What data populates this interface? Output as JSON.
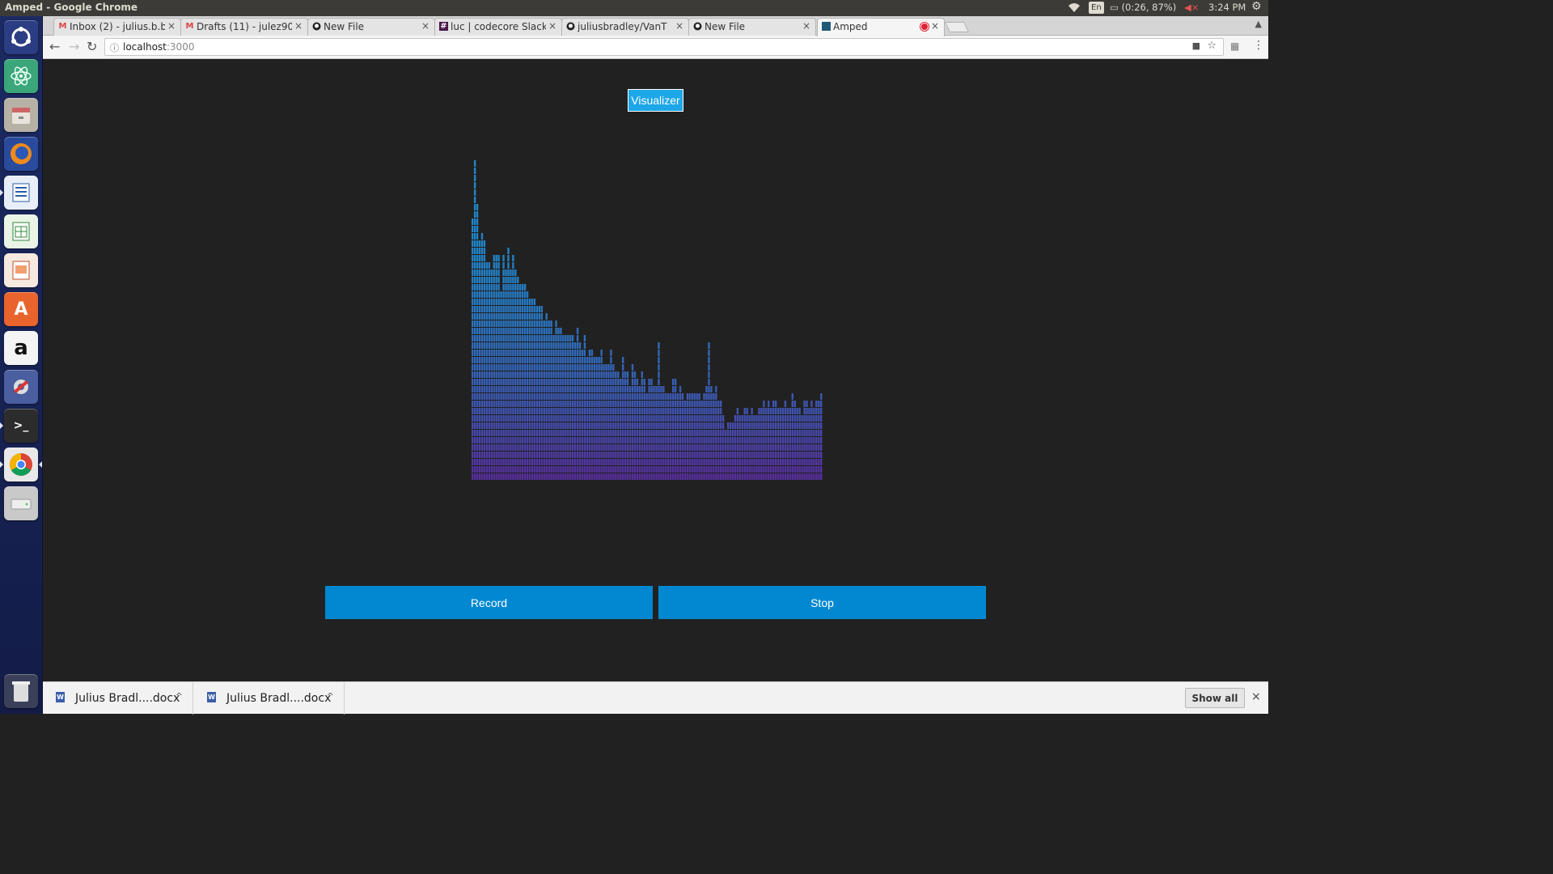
{
  "os_panel": {
    "window_title": "Amped - Google Chrome",
    "language": "En",
    "battery": "(0:26, 87%)",
    "clock": "3:24 PM"
  },
  "launcher": {
    "apps": [
      "ubuntu-dash",
      "atom",
      "files",
      "firefox",
      "writer",
      "calc",
      "impress",
      "software-center",
      "amazon",
      "system-settings",
      "terminal",
      "chrome",
      "disk",
      "trash"
    ]
  },
  "browser": {
    "tabs": [
      {
        "label": "Inbox (2) - julius.b.b",
        "icon": "gmail-icon"
      },
      {
        "label": "Drafts (11) - julez90",
        "icon": "gmail-icon"
      },
      {
        "label": "New File",
        "icon": "github-icon"
      },
      {
        "label": "luc | codecore Slack",
        "icon": "slack-icon"
      },
      {
        "label": "juliusbradley/VanT",
        "icon": "github-icon"
      },
      {
        "label": "New File",
        "icon": "github-icon"
      },
      {
        "label": "Amped",
        "icon": "app-icon",
        "active": true,
        "recording": true
      }
    ],
    "url_host": "localhost",
    "url_port": ":3000"
  },
  "app": {
    "visualizer_label": "Visualizer",
    "record_label": "Record",
    "stop_label": "Stop",
    "colors": {
      "button": "#0288d1",
      "visualizer_button": "#1da7e8",
      "bar_top": "#1e88c8",
      "bar_bottom": "#5a2a9c",
      "background": "#212121"
    }
  },
  "spectrum": {
    "max_segments": 44,
    "levels": [
      36,
      44,
      38,
      33,
      34,
      33,
      30,
      30,
      29,
      31,
      31,
      31,
      26,
      31,
      29,
      32,
      29,
      31,
      29,
      28,
      27,
      27,
      27,
      26,
      25,
      25,
      25,
      24,
      24,
      24,
      22,
      23,
      22,
      22,
      20,
      22,
      21,
      21,
      20,
      20,
      20,
      20,
      20,
      19,
      21,
      19,
      18,
      20,
      17,
      18,
      18,
      17,
      17,
      17,
      18,
      16,
      16,
      16,
      18,
      16,
      15,
      15,
      14,
      17,
      15,
      15,
      13,
      16,
      15,
      14,
      13,
      15,
      14,
      12,
      14,
      14,
      13,
      13,
      19,
      13,
      13,
      12,
      12,
      12,
      14,
      14,
      12,
      13,
      12,
      11,
      12,
      12,
      12,
      12,
      12,
      12,
      11,
      12,
      13,
      19,
      13,
      12,
      13,
      11,
      11,
      9,
      7,
      8,
      8,
      8,
      9,
      10,
      9,
      9,
      10,
      10,
      9,
      10,
      9,
      9,
      10,
      10,
      11,
      10,
      11,
      10,
      11,
      11,
      10,
      10,
      10,
      11,
      10,
      10,
      12,
      11,
      10,
      10,
      9,
      11,
      11,
      10,
      11,
      10,
      11,
      11,
      12
    ]
  },
  "downloads": {
    "items": [
      {
        "name": "Julius Bradl....docx"
      },
      {
        "name": "Julius Bradl....docx"
      }
    ],
    "show_all_label": "Show all"
  }
}
